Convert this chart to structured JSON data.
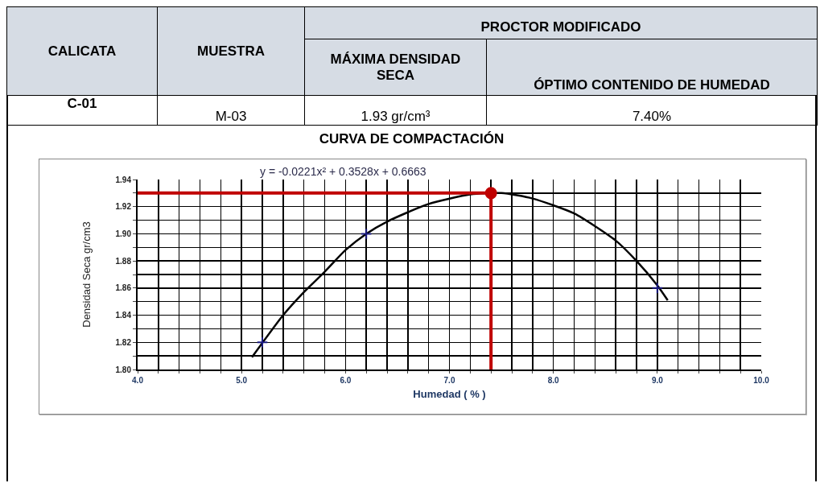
{
  "chart_data": {
    "type": "line",
    "title": "CURVA DE COMPACTACIÓN",
    "xlabel": "Humedad ( % )",
    "ylabel": "Densidad Seca gr/cm3",
    "annotations": [
      "CALICATA",
      "MUESTRA",
      "PROCTOR MODIFICADO",
      "MÁXIMA DENSIDAD SECA",
      "ÓPTIMO CONTENIDO DE HUMEDAD",
      "C-01",
      "M-03",
      "1.93 gr/cm³",
      "7.40%",
      "y = -0.0221x² + 0.3528x + 0.6663"
    ],
    "series": [
      {
        "type": "line",
        "color": "#000000",
        "marker": "none",
        "x": [
          5.1,
          5.4,
          5.6,
          5.8,
          6.0,
          6.2,
          6.4,
          6.8,
          7.2,
          7.5,
          7.8,
          8.2,
          8.6,
          8.8,
          9.0,
          9.1
        ],
        "values": [
          1.809,
          1.84,
          1.857,
          1.872,
          1.888,
          1.9,
          1.909,
          1.922,
          1.929,
          1.93,
          1.926,
          1.915,
          1.895,
          1.88,
          1.862,
          1.851
        ]
      },
      {
        "type": "scatter",
        "color": "#1a1a80",
        "marker": "cross",
        "x": [
          5.2,
          6.2,
          9.0
        ],
        "values": [
          1.82,
          1.9,
          1.86
        ]
      },
      {
        "type": "line",
        "color": "#c00000",
        "marker": "none",
        "x": [
          4.0,
          7.4,
          7.4
        ],
        "values": [
          1.93,
          1.93,
          1.8
        ]
      },
      {
        "type": "scatter",
        "color": "#c00000",
        "marker": "circle",
        "x": [
          7.4
        ],
        "values": [
          1.93
        ]
      }
    ],
    "xlim": [
      4.0,
      10.0
    ],
    "xticks": [
      {
        "value": 4,
        "label": "4.0"
      },
      {
        "value": 4.2,
        "label": null
      },
      {
        "value": 4.4,
        "label": null
      },
      {
        "value": 4.6,
        "label": null
      },
      {
        "value": 4.8,
        "label": null
      },
      {
        "value": 5,
        "label": "5.0"
      },
      {
        "value": 5.2,
        "label": null
      },
      {
        "value": 5.4,
        "label": null
      },
      {
        "value": 5.6,
        "label": null
      },
      {
        "value": 5.8,
        "label": null
      },
      {
        "value": 6,
        "label": "6.0"
      },
      {
        "value": 6.2,
        "label": null
      },
      {
        "value": 6.4,
        "label": null
      },
      {
        "value": 6.6,
        "label": null
      },
      {
        "value": 6.8,
        "label": null
      },
      {
        "value": 7,
        "label": "7.0"
      },
      {
        "value": 7.2,
        "label": null
      },
      {
        "value": 7.4,
        "label": null
      },
      {
        "value": 7.6,
        "label": null
      },
      {
        "value": 7.8,
        "label": null
      },
      {
        "value": 8,
        "label": "8.0"
      },
      {
        "value": 8.2,
        "label": null
      },
      {
        "value": 8.4,
        "label": null
      },
      {
        "value": 8.6,
        "label": null
      },
      {
        "value": 8.8,
        "label": null
      },
      {
        "value": 9,
        "label": "9.0"
      },
      {
        "value": 9.2,
        "label": null
      },
      {
        "value": 9.4,
        "label": null
      },
      {
        "value": 9.6,
        "label": null
      },
      {
        "value": 9.8,
        "label": null
      },
      {
        "value": 10,
        "label": "10.0"
      }
    ],
    "ylim": [
      1.8,
      1.94
    ],
    "yticks": [
      {
        "value": 1.8,
        "label": "1.80"
      },
      {
        "value": 1.81,
        "label": null
      },
      1.82,
      {
        "value": 1.83,
        "label": null
      },
      1.84,
      {
        "value": 1.85,
        "label": null
      },
      1.86,
      {
        "value": 1.87,
        "label": null
      },
      1.88,
      {
        "value": 1.89,
        "label": null
      },
      {
        "value": 1.9,
        "label": "1.90"
      },
      {
        "value": 1.91,
        "label": null
      },
      1.92,
      {
        "value": 1.93,
        "label": null
      },
      1.94
    ],
    "grid": true
  }
}
